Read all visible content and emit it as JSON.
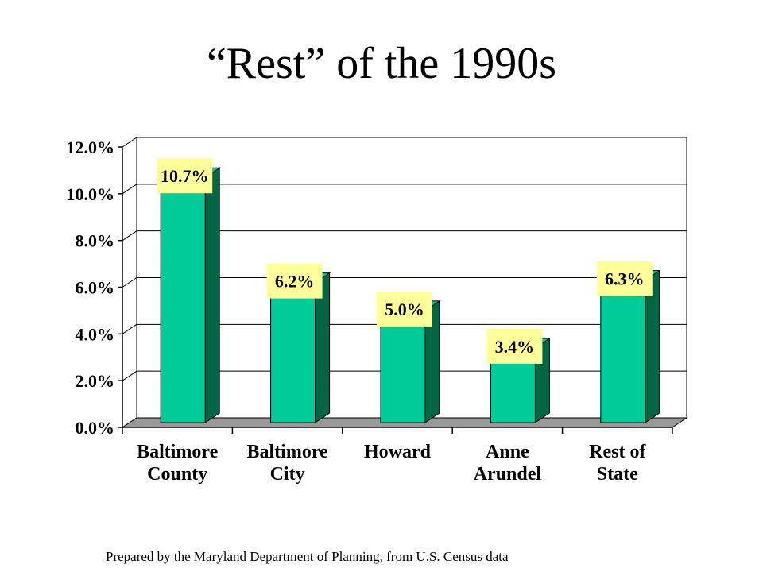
{
  "slide": {
    "title": "“Rest” of the 1990s",
    "footer": "Prepared by the Maryland Department of Planning, from U.S. Census data"
  },
  "colors": {
    "bar_front": "#00cc99",
    "bar_side": "#006644",
    "floor": "#999999",
    "label_bg": "#ffff99"
  },
  "chart_data": {
    "type": "bar",
    "title": "",
    "categories": [
      [
        "Baltimore",
        "County"
      ],
      [
        "Baltimore",
        "City"
      ],
      [
        "Howard"
      ],
      [
        "Anne",
        "Arundel"
      ],
      [
        "Rest of",
        "State"
      ]
    ],
    "values": [
      10.7,
      6.2,
      5.0,
      3.4,
      6.3
    ],
    "data_labels": [
      "10.7%",
      "6.2%",
      "5.0%",
      "3.4%",
      "6.3%"
    ],
    "ylim": [
      0,
      12
    ],
    "yticks": [
      0,
      2,
      4,
      6,
      8,
      10,
      12
    ],
    "ytick_labels": [
      "0.0%",
      "2.0%",
      "4.0%",
      "6.0%",
      "8.0%",
      "10.0%",
      "12.0%"
    ],
    "xlabel": "",
    "ylabel": "",
    "grid": true,
    "legend": "none"
  }
}
